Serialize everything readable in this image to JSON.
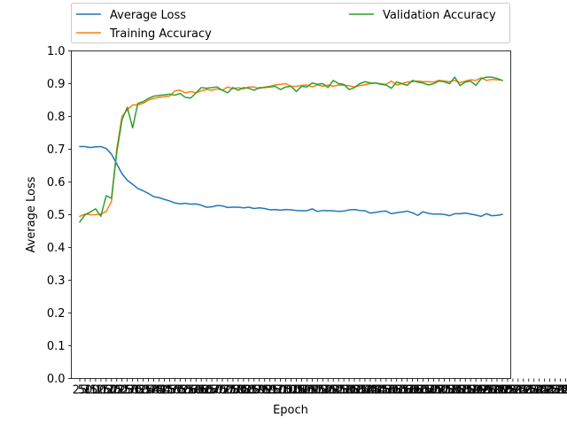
{
  "chart_data": {
    "type": "line",
    "xlabel": "Epoch",
    "ylabel": "Average Loss",
    "ylim": [
      0.0,
      1.0
    ],
    "y_ticks": [
      "0.0",
      "0.1",
      "0.2",
      "0.3",
      "0.4",
      "0.5",
      "0.6",
      "0.7",
      "0.8",
      "0.9",
      "1.0"
    ],
    "x_start": 25,
    "x_step": 25,
    "x_tick_labels": [
      "25",
      "50",
      "75",
      "100",
      "125",
      "150",
      "175",
      "200",
      "225",
      "250",
      "275",
      "300",
      "325",
      "350",
      "375",
      "400",
      "425",
      "450",
      "475",
      "500",
      "525",
      "550",
      "575",
      "600",
      "625",
      "650",
      "675",
      "700",
      "725",
      "750",
      "775",
      "800",
      "825",
      "850",
      "875",
      "900",
      "925",
      "950",
      "975",
      "1000",
      "1025",
      "1050",
      "1075",
      "1100",
      "1125",
      "1150",
      "1175",
      "1200",
      "1225",
      "1250",
      "1275",
      "1300",
      "1325",
      "1350",
      "1375",
      "1400",
      "1425",
      "1450",
      "1475",
      "1500",
      "1525",
      "1550",
      "1575",
      "1600",
      "1625",
      "1650",
      "1675",
      "1700",
      "1725",
      "1750",
      "1775",
      "1800",
      "1825",
      "1850",
      "1875",
      "1900",
      "1925",
      "1950",
      "1975",
      "2000",
      "2025",
      "2050",
      "2075",
      "2100",
      "2125",
      "2150",
      "2175",
      "2200",
      "2225",
      "2250",
      "2275",
      "2300",
      "2325",
      "2350",
      "2375",
      "2400",
      "2425",
      "2450",
      "2475",
      "2500",
      "2525",
      "2550",
      "2575",
      "2600",
      "2625",
      "2650",
      "2675",
      "2700",
      "2725",
      "2750",
      "2775",
      "2800",
      "2825",
      "2850",
      "2875",
      "2900",
      "2925",
      "2950",
      "2975",
      "3000",
      "3025",
      "3050",
      "3075",
      "3100",
      "3125",
      "3150",
      "3175",
      "3200",
      "3225",
      "3250",
      "3275",
      "3300",
      "3325",
      "3350",
      "3375",
      "3400",
      "3425",
      "3450",
      "3475",
      "3500",
      "3525",
      "3550",
      "3575",
      "3600",
      "3625",
      "3650",
      "3675",
      "3700",
      "3725",
      "3750"
    ],
    "legend_placement": "top",
    "grid": false,
    "series": [
      {
        "name": "Average Loss",
        "color": "#1f77b4",
        "values": [
          0.708,
          0.708,
          0.705,
          0.707,
          0.708,
          0.702,
          0.685,
          0.655,
          0.625,
          0.605,
          0.593,
          0.58,
          0.573,
          0.565,
          0.555,
          0.552,
          0.547,
          0.542,
          0.536,
          0.533,
          0.535,
          0.532,
          0.533,
          0.529,
          0.523,
          0.524,
          0.528,
          0.527,
          0.522,
          0.523,
          0.523,
          0.521,
          0.523,
          0.519,
          0.521,
          0.519,
          0.515,
          0.516,
          0.514,
          0.516,
          0.515,
          0.513,
          0.512,
          0.512,
          0.518,
          0.51,
          0.513,
          0.512,
          0.512,
          0.51,
          0.511,
          0.515,
          0.516,
          0.513,
          0.512,
          0.505,
          0.507,
          0.51,
          0.511,
          0.503,
          0.506,
          0.508,
          0.511,
          0.506,
          0.498,
          0.509,
          0.504,
          0.502,
          0.502,
          0.501,
          0.497,
          0.503,
          0.503,
          0.505,
          0.502,
          0.499,
          0.495,
          0.503,
          0.497,
          0.498,
          0.501
        ]
      },
      {
        "name": "Training Accuracy",
        "color": "#ff7f0e",
        "values": [
          0.495,
          0.502,
          0.5,
          0.5,
          0.502,
          0.51,
          0.54,
          0.7,
          0.8,
          0.82,
          0.835,
          0.835,
          0.84,
          0.85,
          0.855,
          0.858,
          0.86,
          0.862,
          0.878,
          0.88,
          0.872,
          0.876,
          0.872,
          0.878,
          0.882,
          0.88,
          0.884,
          0.88,
          0.89,
          0.885,
          0.888,
          0.884,
          0.89,
          0.89,
          0.885,
          0.89,
          0.892,
          0.896,
          0.898,
          0.9,
          0.892,
          0.892,
          0.895,
          0.896,
          0.89,
          0.896,
          0.892,
          0.896,
          0.892,
          0.896,
          0.895,
          0.894,
          0.89,
          0.894,
          0.897,
          0.9,
          0.902,
          0.9,
          0.898,
          0.908,
          0.896,
          0.9,
          0.905,
          0.906,
          0.908,
          0.906,
          0.906,
          0.905,
          0.91,
          0.908,
          0.906,
          0.91,
          0.903,
          0.908,
          0.912,
          0.91,
          0.918,
          0.91,
          0.913,
          0.912,
          0.91
        ]
      },
      {
        "name": "Validation Accuracy",
        "color": "#2ca02c",
        "values": [
          0.478,
          0.5,
          0.508,
          0.518,
          0.495,
          0.558,
          0.55,
          0.69,
          0.79,
          0.828,
          0.765,
          0.84,
          0.845,
          0.855,
          0.862,
          0.864,
          0.866,
          0.868,
          0.865,
          0.87,
          0.858,
          0.856,
          0.872,
          0.888,
          0.886,
          0.888,
          0.89,
          0.88,
          0.872,
          0.888,
          0.88,
          0.888,
          0.886,
          0.88,
          0.888,
          0.888,
          0.89,
          0.892,
          0.882,
          0.89,
          0.892,
          0.876,
          0.892,
          0.89,
          0.902,
          0.898,
          0.9,
          0.888,
          0.91,
          0.9,
          0.898,
          0.882,
          0.888,
          0.9,
          0.906,
          0.902,
          0.902,
          0.898,
          0.896,
          0.886,
          0.905,
          0.9,
          0.895,
          0.91,
          0.905,
          0.902,
          0.896,
          0.9,
          0.908,
          0.906,
          0.9,
          0.92,
          0.894,
          0.905,
          0.908,
          0.895,
          0.915,
          0.92,
          0.92,
          0.916,
          0.91
        ]
      }
    ]
  }
}
